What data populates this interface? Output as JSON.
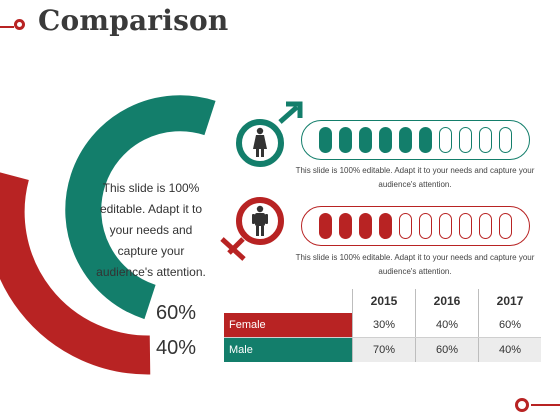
{
  "slide": {
    "title": "Comparison",
    "center_text": "This slide is 100% editable. Adapt it to your needs and capture your audience's attention."
  },
  "donut": {
    "female_percent": "60%",
    "male_percent": "40%",
    "female_fraction": 0.6,
    "male_fraction": 0.4,
    "female_color": "#137e6b",
    "male_color": "#b82323"
  },
  "rows": {
    "female": {
      "icon": "female-figure-icon",
      "symbol": "mars-symbol",
      "filled": 6,
      "total": 10,
      "description": "This slide is 100% editable. Adapt it to your needs and capture your audience's attention."
    },
    "male": {
      "icon": "male-figure-icon",
      "symbol": "venus-symbol",
      "filled": 4,
      "total": 10,
      "description": "This slide is 100% editable. Adapt it to your needs and capture your audience's attention."
    }
  },
  "table": {
    "years": [
      "2015",
      "2016",
      "2017"
    ],
    "female": {
      "label": "Female",
      "values": [
        "30%",
        "40%",
        "60%"
      ]
    },
    "male": {
      "label": "Male",
      "values": [
        "70%",
        "60%",
        "40%"
      ]
    }
  }
}
